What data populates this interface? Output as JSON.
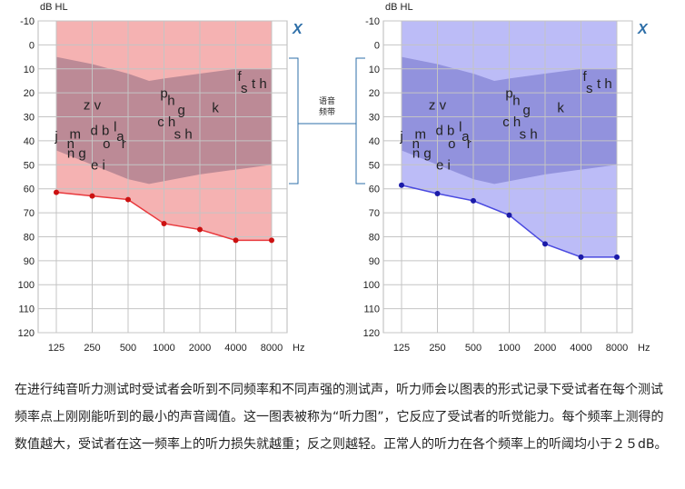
{
  "chart_data": [
    {
      "type": "line",
      "ylabel": "dB HL",
      "xlabel": "Hz",
      "ear_mark": "X",
      "x_ticks": [
        "125",
        "250",
        "500",
        "1000",
        "2000",
        "4000",
        "8000"
      ],
      "x": [
        125,
        250,
        500,
        1000,
        2000,
        4000,
        8000
      ],
      "y_ticks": [
        "-10",
        "0",
        "10",
        "20",
        "30",
        "40",
        "50",
        "60",
        "70",
        "80",
        "90",
        "100",
        "110",
        "120"
      ],
      "ylim": [
        -10,
        120
      ],
      "y_inverted": true,
      "grid": true,
      "series": [
        {
          "values": [
            61.5,
            63,
            64.5,
            74.5,
            77,
            81.5,
            81.5
          ]
        }
      ],
      "colors": {
        "line": "#e8393d",
        "point": "#cc1111",
        "fill": "#f3a5a5",
        "band": "#8c6a80"
      }
    },
    {
      "type": "line",
      "ylabel": "dB HL",
      "xlabel": "Hz",
      "ear_mark": "X",
      "x_ticks": [
        "125",
        "250",
        "500",
        "1000",
        "2000",
        "4000",
        "8000"
      ],
      "x": [
        125,
        250,
        500,
        1000,
        2000,
        4000,
        8000
      ],
      "y_ticks": [
        "-10",
        "0",
        "10",
        "20",
        "30",
        "40",
        "50",
        "60",
        "70",
        "80",
        "90",
        "100",
        "110",
        "120"
      ],
      "ylim": [
        -10,
        120
      ],
      "y_inverted": true,
      "grid": true,
      "series": [
        {
          "values": [
            58.5,
            62,
            65,
            71,
            83,
            88.5,
            88.5
          ]
        }
      ],
      "colors": {
        "line": "#4a4ae0",
        "point": "#1a1aa8",
        "fill": "#b0b0f6",
        "band": "#7070c8"
      }
    }
  ],
  "speech_banana": {
    "band_label": [
      "语音",
      "频带"
    ],
    "phonemes": [
      {
        "text": "z v",
        "x": 250,
        "y": 27
      },
      {
        "text": "j",
        "x": 125,
        "y": 40
      },
      {
        "text": "m",
        "x": 180,
        "y": 39
      },
      {
        "text": "n",
        "x": 165,
        "y": 43
      },
      {
        "text": "d b",
        "x": 290,
        "y": 37.5
      },
      {
        "text": "o",
        "x": 330,
        "y": 43
      },
      {
        "text": "l",
        "x": 390,
        "y": 36
      },
      {
        "text": "a",
        "x": 430,
        "y": 40
      },
      {
        "text": "r",
        "x": 460,
        "y": 43
      },
      {
        "text": "n g",
        "x": 185,
        "y": 47
      },
      {
        "text": "e i",
        "x": 280,
        "y": 52
      },
      {
        "text": "p",
        "x": 1000,
        "y": 22
      },
      {
        "text": "h",
        "x": 1150,
        "y": 25
      },
      {
        "text": "g",
        "x": 1400,
        "y": 29
      },
      {
        "text": "c h",
        "x": 1050,
        "y": 34
      },
      {
        "text": "s h",
        "x": 1450,
        "y": 39
      },
      {
        "text": "k",
        "x": 2700,
        "y": 28
      },
      {
        "text": "f",
        "x": 4300,
        "y": 15
      },
      {
        "text": "s",
        "x": 4700,
        "y": 20
      },
      {
        "text": "t h",
        "x": 6300,
        "y": 18
      }
    ]
  },
  "caption": "在进行纯音听力测试时受试者会听到不同频率和不同声强的测试声，听力师会以图表的形式记录下受试者在每个测试频率点上刚刚能听到的最小的声音阈值。这一图表被称为“听力图”，它反应了受试者的听觉能力。每个频率上测得的数值越大，受试者在这一频率上的听力损失就越重；反之则越轻。正常人的听力在各个频率上的听阈均小于２５dB。"
}
